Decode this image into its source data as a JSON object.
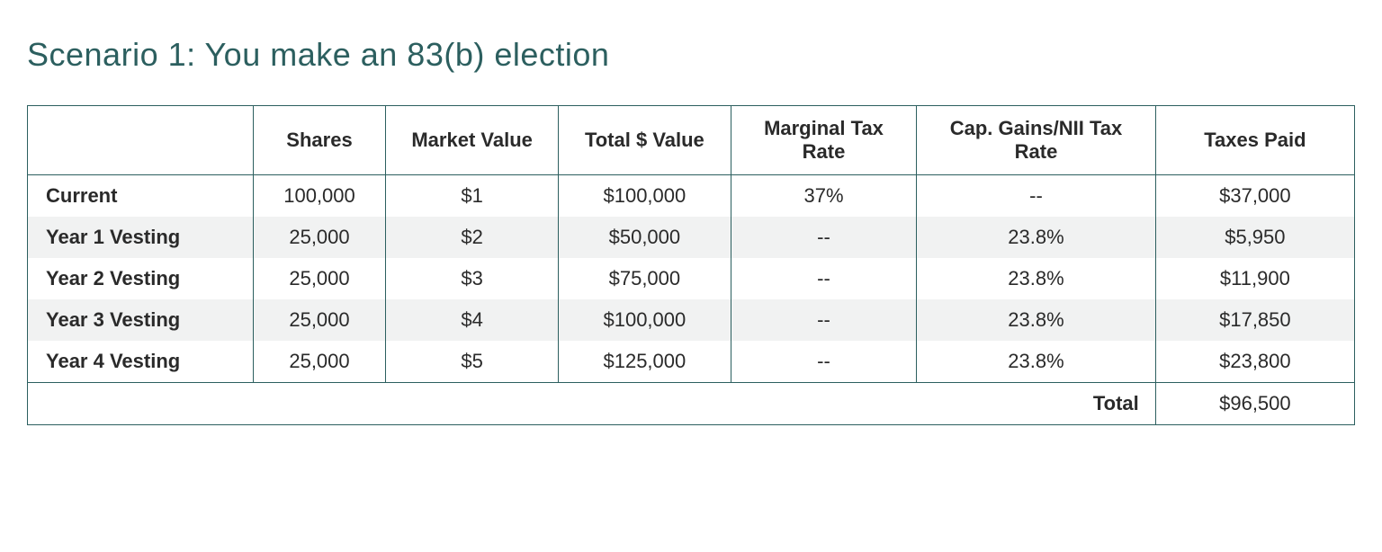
{
  "title": "Scenario 1: You make an 83(b) election",
  "colors": {
    "title": "#2c5f5f",
    "border": "#2c5f5f",
    "text": "#2a2a2a",
    "stripe": "#f1f2f2",
    "background": "#ffffff"
  },
  "table": {
    "type": "table",
    "columns": [
      "",
      "Shares",
      "Market Value",
      "Total $ Value",
      "Marginal Tax Rate",
      "Cap. Gains/NII Tax Rate",
      "Taxes Paid"
    ],
    "column_widths_pct": [
      17,
      10,
      13,
      13,
      14,
      18,
      15
    ],
    "header_fontsize": 22,
    "cell_fontsize": 22,
    "rows": [
      {
        "label": "Current",
        "shares": "100,000",
        "market_value": "$1",
        "total_value": "$100,000",
        "marginal": "37%",
        "capgains": "--",
        "taxes": "$37,000",
        "stripe": false
      },
      {
        "label": "Year 1 Vesting",
        "shares": "25,000",
        "market_value": "$2",
        "total_value": "$50,000",
        "marginal": "--",
        "capgains": "23.8%",
        "taxes": "$5,950",
        "stripe": true
      },
      {
        "label": "Year 2 Vesting",
        "shares": "25,000",
        "market_value": "$3",
        "total_value": "$75,000",
        "marginal": "--",
        "capgains": "23.8%",
        "taxes": "$11,900",
        "stripe": false
      },
      {
        "label": "Year 3 Vesting",
        "shares": "25,000",
        "market_value": "$4",
        "total_value": "$100,000",
        "marginal": "--",
        "capgains": "23.8%",
        "taxes": "$17,850",
        "stripe": true
      },
      {
        "label": "Year 4 Vesting",
        "shares": "25,000",
        "market_value": "$5",
        "total_value": "$125,000",
        "marginal": "--",
        "capgains": "23.8%",
        "taxes": "$23,800",
        "stripe": false
      }
    ],
    "total": {
      "label": "Total",
      "value": "$96,500"
    }
  }
}
